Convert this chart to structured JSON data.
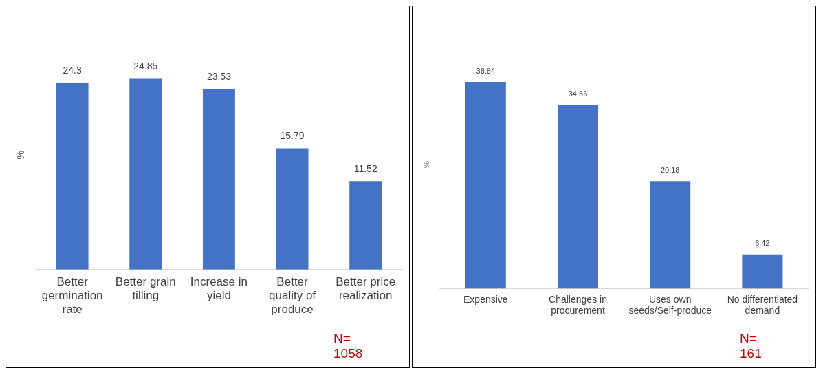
{
  "chart_data": [
    {
      "type": "bar",
      "ylabel": "%",
      "categories": [
        "Better germination rate",
        "Better grain tilling",
        "Increase in yield",
        "Better quality of produce",
        "Better price realization"
      ],
      "values": [
        24.3,
        24.85,
        23.53,
        15.79,
        11.52
      ],
      "color": "#4472c4",
      "data_labels": true,
      "grid": false,
      "legend": false,
      "tick_labels": "x",
      "annotations": [
        "N= 1058"
      ]
    },
    {
      "type": "bar",
      "ylabel": "%",
      "categories": [
        "Expensive",
        "Challenges in procurement",
        "Uses own seeds/Self-produce",
        "No differentiated demand"
      ],
      "values": [
        38.84,
        34.56,
        20.18,
        6.42
      ],
      "color": "#4472c4",
      "data_labels": true,
      "grid": false,
      "legend": false,
      "tick_labels": "x",
      "annotations": [
        "N= 161"
      ]
    }
  ]
}
